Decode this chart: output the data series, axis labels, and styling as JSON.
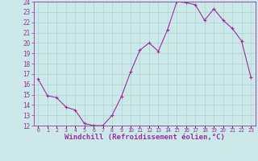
{
  "x": [
    0,
    1,
    2,
    3,
    4,
    5,
    6,
    7,
    8,
    9,
    10,
    11,
    12,
    13,
    14,
    15,
    16,
    17,
    18,
    19,
    20,
    21,
    22,
    23
  ],
  "y": [
    16.5,
    14.9,
    14.7,
    13.8,
    13.5,
    12.2,
    12.0,
    12.0,
    13.0,
    14.8,
    17.2,
    19.3,
    20.0,
    19.2,
    21.3,
    24.0,
    23.9,
    23.7,
    22.2,
    23.3,
    22.2,
    21.4,
    20.2,
    16.7
  ],
  "x_labels": [
    "0",
    "1",
    "2",
    "3",
    "4",
    "5",
    "6",
    "7",
    "8",
    "9",
    "10",
    "11",
    "12",
    "13",
    "14",
    "15",
    "16",
    "17",
    "18",
    "19",
    "20",
    "21",
    "22",
    "23"
  ],
  "y_min": 12,
  "y_max": 24,
  "y_ticks": [
    12,
    13,
    14,
    15,
    16,
    17,
    18,
    19,
    20,
    21,
    22,
    23,
    24
  ],
  "line_color": "#993399",
  "marker": "+",
  "marker_size": 3,
  "marker_lw": 0.8,
  "line_width": 0.8,
  "bg_color": "#cce8e8",
  "grid_color": "#aacccc",
  "xlabel": "Windchill (Refroidissement éolien,°C)",
  "xlabel_color": "#993399",
  "xlabel_fontsize": 6.5,
  "ytick_fontsize": 5.5,
  "xtick_fontsize": 4.8
}
